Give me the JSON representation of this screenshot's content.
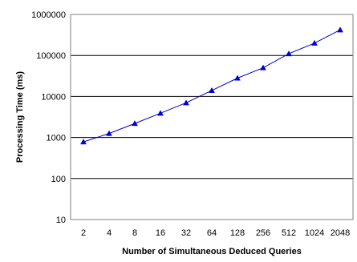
{
  "chart_data": {
    "type": "line",
    "title": "",
    "xlabel": "Number of Simultaneous Deduced Queries",
    "ylabel": "Processing Time (ms)",
    "y_scale": "log",
    "ylim": [
      10,
      1000000
    ],
    "grid": true,
    "legend": "none",
    "categories": [
      "2",
      "4",
      "8",
      "16",
      "32",
      "64",
      "128",
      "256",
      "512",
      "1024",
      "2048"
    ],
    "y_tick_labels": [
      "10",
      "100",
      "1000",
      "10000",
      "100000",
      "1000000"
    ],
    "series": [
      {
        "values": [
          780,
          1250,
          2200,
          3900,
          7000,
          14000,
          28000,
          50000,
          110000,
          200000,
          420000
        ],
        "color": "#0000cc",
        "marker": "triangle"
      }
    ]
  }
}
